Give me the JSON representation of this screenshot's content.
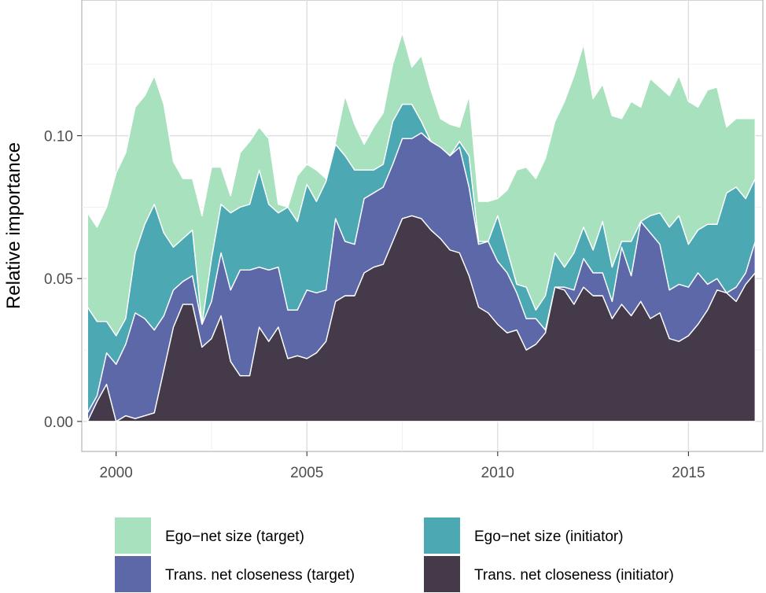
{
  "chart_data": {
    "type": "area",
    "stacked": true,
    "title": "",
    "xlabel": "",
    "ylabel": "Relative importance",
    "xlim": [
      1999.1,
      2016.95
    ],
    "ylim": [
      -0.0105,
      0.1475
    ],
    "xticks": [
      2000,
      2005,
      2010,
      2015
    ],
    "xtick_labels": [
      "2000",
      "2005",
      "2010",
      "2015"
    ],
    "yticks": [
      0.0,
      0.05,
      0.1
    ],
    "ytick_labels": [
      "0.00",
      "0.05",
      "0.10"
    ],
    "grid": true,
    "legend_position": "bottom",
    "x": [
      1999.25,
      1999.5,
      1999.75,
      2000,
      2000.25,
      2000.5,
      2000.75,
      2001,
      2001.25,
      2001.5,
      2001.75,
      2002,
      2002.25,
      2002.5,
      2002.75,
      2003,
      2003.25,
      2003.5,
      2003.75,
      2004,
      2004.25,
      2004.5,
      2004.75,
      2005,
      2005.25,
      2005.5,
      2005.75,
      2006,
      2006.25,
      2006.5,
      2006.75,
      2007,
      2007.25,
      2007.5,
      2007.75,
      2008,
      2008.25,
      2008.5,
      2008.75,
      2009,
      2009.25,
      2009.5,
      2009.75,
      2010,
      2010.25,
      2010.5,
      2010.75,
      2011,
      2011.25,
      2011.5,
      2011.75,
      2012,
      2012.25,
      2012.5,
      2012.75,
      2013,
      2013.25,
      2013.5,
      2013.75,
      2014,
      2014.25,
      2014.5,
      2014.75,
      2015,
      2015.25,
      2015.5,
      2015.75,
      2016,
      2016.25,
      2016.5,
      2016.75
    ],
    "series": [
      {
        "name": "Trans. net closeness (initiator)",
        "color": "#453a49",
        "values": [
          0.0,
          0.007,
          0.013,
          0.0,
          0.002,
          0.001,
          0.002,
          0.003,
          0.018,
          0.033,
          0.041,
          0.041,
          0.026,
          0.029,
          0.037,
          0.021,
          0.016,
          0.016,
          0.033,
          0.028,
          0.033,
          0.022,
          0.023,
          0.022,
          0.024,
          0.028,
          0.042,
          0.044,
          0.044,
          0.052,
          0.054,
          0.055,
          0.063,
          0.071,
          0.072,
          0.071,
          0.067,
          0.064,
          0.06,
          0.059,
          0.051,
          0.04,
          0.038,
          0.034,
          0.031,
          0.032,
          0.025,
          0.027,
          0.031,
          0.047,
          0.046,
          0.041,
          0.047,
          0.044,
          0.044,
          0.036,
          0.041,
          0.037,
          0.042,
          0.036,
          0.038,
          0.029,
          0.028,
          0.03,
          0.034,
          0.039,
          0.046,
          0.045,
          0.042,
          0.048,
          0.052
        ]
      },
      {
        "name": "Trans. net closeness (target)",
        "color": "#5c68a8",
        "values": [
          0.003,
          0.002,
          0.011,
          0.02,
          0.025,
          0.037,
          0.034,
          0.029,
          0.019,
          0.013,
          0.008,
          0.01,
          0.008,
          0.013,
          0.022,
          0.025,
          0.037,
          0.037,
          0.021,
          0.025,
          0.021,
          0.017,
          0.016,
          0.024,
          0.021,
          0.018,
          0.029,
          0.019,
          0.018,
          0.026,
          0.026,
          0.027,
          0.027,
          0.028,
          0.027,
          0.03,
          0.031,
          0.032,
          0.033,
          0.037,
          0.031,
          0.022,
          0.025,
          0.022,
          0.021,
          0.013,
          0.011,
          0.009,
          0.001,
          0.0,
          0.001,
          0.005,
          0.01,
          0.008,
          0.008,
          0.006,
          0.02,
          0.014,
          0.028,
          0.03,
          0.024,
          0.017,
          0.02,
          0.017,
          0.018,
          0.009,
          0.004,
          0.0,
          0.005,
          0.004,
          0.011
        ]
      },
      {
        "name": "Ego-net size (initiator)",
        "color": "#4ca9b3",
        "values": [
          0.037,
          0.026,
          0.011,
          0.01,
          0.009,
          0.021,
          0.033,
          0.044,
          0.029,
          0.015,
          0.015,
          0.016,
          0.0,
          0.015,
          0.017,
          0.027,
          0.022,
          0.023,
          0.034,
          0.023,
          0.019,
          0.036,
          0.031,
          0.037,
          0.032,
          0.038,
          0.026,
          0.03,
          0.026,
          0.01,
          0.008,
          0.008,
          0.015,
          0.012,
          0.012,
          0.004,
          0.0,
          0.0,
          0.0,
          0.002,
          0.011,
          0.001,
          0.0,
          0.016,
          0.008,
          0.003,
          0.011,
          0.003,
          0.012,
          0.012,
          0.007,
          0.013,
          0.011,
          0.008,
          0.018,
          0.012,
          0.002,
          0.012,
          0.0,
          0.006,
          0.011,
          0.022,
          0.024,
          0.015,
          0.015,
          0.021,
          0.019,
          0.035,
          0.035,
          0.026,
          0.022
        ]
      },
      {
        "name": "Ego-net size (target)",
        "color": "#a8e1bd",
        "values": [
          0.033,
          0.033,
          0.04,
          0.057,
          0.058,
          0.051,
          0.045,
          0.045,
          0.045,
          0.03,
          0.021,
          0.018,
          0.038,
          0.032,
          0.013,
          0.006,
          0.019,
          0.022,
          0.015,
          0.023,
          0.003,
          0.0,
          0.016,
          0.007,
          0.011,
          0.001,
          0.001,
          0.021,
          0.016,
          0.009,
          0.015,
          0.018,
          0.02,
          0.025,
          0.013,
          0.023,
          0.018,
          0.01,
          0.011,
          0.005,
          0.021,
          0.014,
          0.014,
          0.006,
          0.021,
          0.04,
          0.042,
          0.046,
          0.048,
          0.046,
          0.058,
          0.062,
          0.064,
          0.053,
          0.048,
          0.053,
          0.043,
          0.049,
          0.04,
          0.048,
          0.044,
          0.046,
          0.049,
          0.05,
          0.043,
          0.047,
          0.048,
          0.023,
          0.024,
          0.028,
          0.021
        ]
      }
    ],
    "legend": [
      {
        "label": "Ego−net size (target)",
        "color": "#a8e1bd"
      },
      {
        "label": "Ego−net size (initiator)",
        "color": "#4ca9b3"
      },
      {
        "label": "Trans. net closeness (target)",
        "color": "#5c68a8"
      },
      {
        "label": "Trans. net closeness (initiator)",
        "color": "#453a49"
      }
    ]
  }
}
